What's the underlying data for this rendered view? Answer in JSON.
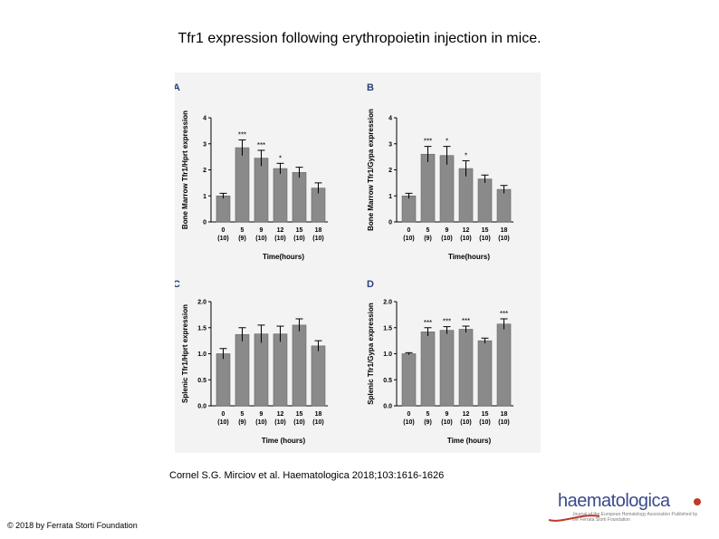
{
  "title": "Tfr1 expression following erythropoietin injection in mice.",
  "citation": "Cornel S.G. Mirciov et al. Haematologica 2018;103:1616-1626",
  "copyright": "© 2018 by Ferrata Storti Foundation",
  "logo": {
    "word": "haematologica",
    "subtitle": "Journal of the European Hematology Association Published by the Ferrata Storti Foundation",
    "accent_color": "#c0392b"
  },
  "chart_data": [
    {
      "type": "bar",
      "panel": "A",
      "categories": [
        "0",
        "5",
        "9",
        "12",
        "15",
        "18"
      ],
      "n_labels": [
        "(10)",
        "(9)",
        "(10)",
        "(10)",
        "(10)",
        "(10)"
      ],
      "values": [
        1.0,
        2.85,
        2.45,
        2.05,
        1.9,
        1.3
      ],
      "errors": [
        0.1,
        0.3,
        0.3,
        0.2,
        0.2,
        0.2
      ],
      "significance": [
        "",
        "***",
        "***",
        "*",
        "",
        ""
      ],
      "ylabel": "Bone Marrow Tfr1/Hprt expression",
      "xlabel": "Time(hours)",
      "ylim": [
        0,
        4
      ],
      "yticks": [
        "0",
        "1",
        "2",
        "3",
        "4"
      ]
    },
    {
      "type": "bar",
      "panel": "B",
      "categories": [
        "0",
        "5",
        "9",
        "12",
        "15",
        "18"
      ],
      "n_labels": [
        "(10)",
        "(9)",
        "(10)",
        "(10)",
        "(10)",
        "(10)"
      ],
      "values": [
        1.0,
        2.6,
        2.55,
        2.05,
        1.65,
        1.25
      ],
      "errors": [
        0.1,
        0.3,
        0.35,
        0.3,
        0.15,
        0.15
      ],
      "significance": [
        "",
        "***",
        "*",
        "*",
        "",
        ""
      ],
      "ylabel": "Bone Marrow Tfr1/Gypa expression",
      "xlabel": "Time(hours)",
      "ylim": [
        0,
        4
      ],
      "yticks": [
        "0",
        "1",
        "2",
        "3",
        "4"
      ]
    },
    {
      "type": "bar",
      "panel": "C",
      "categories": [
        "0",
        "5",
        "9",
        "12",
        "15",
        "18"
      ],
      "n_labels": [
        "(10)",
        "(9)",
        "(10)",
        "(10)",
        "(10)",
        "(10)"
      ],
      "values": [
        1.0,
        1.37,
        1.38,
        1.38,
        1.55,
        1.15
      ],
      "errors": [
        0.1,
        0.13,
        0.17,
        0.15,
        0.12,
        0.1
      ],
      "significance": [
        "",
        "",
        "",
        "",
        "",
        ""
      ],
      "ylabel": "Splenic Tfr1/Hprt expression",
      "xlabel": "Time (hours)",
      "ylim": [
        0,
        2.0
      ],
      "yticks": [
        "0.0",
        "0.5",
        "1.0",
        "1.5",
        "2.0"
      ]
    },
    {
      "type": "bar",
      "panel": "D",
      "categories": [
        "0",
        "5",
        "9",
        "12",
        "15",
        "18"
      ],
      "n_labels": [
        "(10)",
        "(9)",
        "(10)",
        "(10)",
        "(10)",
        "(10)"
      ],
      "values": [
        1.0,
        1.42,
        1.45,
        1.47,
        1.25,
        1.57
      ],
      "errors": [
        0.02,
        0.08,
        0.07,
        0.06,
        0.05,
        0.1
      ],
      "significance": [
        "",
        "***",
        "***",
        "***",
        "",
        "***"
      ],
      "ylabel": "Splenic Tfr1/Gypa expression",
      "xlabel": "Time (hours)",
      "ylim": [
        0,
        2.0
      ],
      "yticks": [
        "0.0",
        "0.5",
        "1.0",
        "1.5",
        "2.0"
      ]
    }
  ]
}
